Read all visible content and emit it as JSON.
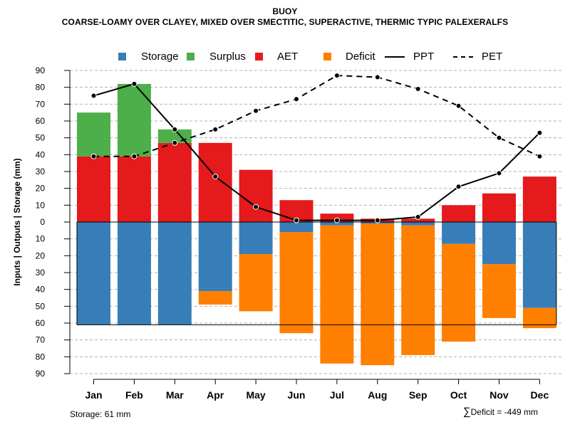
{
  "title": "BUOY",
  "subtitle": "COARSE-LOAMY OVER CLAYEY, MIXED OVER SMECTITIC, SUPERACTIVE, THERMIC TYPIC PALEXERALFS",
  "legend": [
    {
      "label": "Storage",
      "kind": "box",
      "color": "#377eb8"
    },
    {
      "label": "Surplus",
      "kind": "box",
      "color": "#4daf4a"
    },
    {
      "label": "AET",
      "kind": "box",
      "color": "#e41a1c"
    },
    {
      "label": "Deficit",
      "kind": "box",
      "color": "#ff7f00"
    },
    {
      "label": "PPT",
      "kind": "solid",
      "color": "#000000"
    },
    {
      "label": "PET",
      "kind": "dashed",
      "color": "#000000"
    }
  ],
  "footer": {
    "storage_note": "Storage: 61 mm",
    "deficit_symbol": "∑",
    "deficit_note": "Deficit = -449 mm"
  },
  "chart_data": {
    "type": "bar",
    "title": "BUOY",
    "ylabel": "Inputs | Outputs | Storage     (mm)",
    "ylim": [
      -90,
      90
    ],
    "yticks": [
      90,
      80,
      70,
      60,
      50,
      40,
      30,
      20,
      10,
      0,
      -10,
      -20,
      -30,
      -40,
      -50,
      -60,
      -70,
      -80,
      -90
    ],
    "ytick_labels": [
      "90",
      "80",
      "70",
      "60",
      "50",
      "40",
      "30",
      "20",
      "10",
      "0",
      "10",
      "20",
      "30",
      "40",
      "50",
      "60",
      "70",
      "80",
      "90"
    ],
    "categories": [
      "Jan",
      "Feb",
      "Mar",
      "Apr",
      "May",
      "Jun",
      "Jul",
      "Aug",
      "Sep",
      "Oct",
      "Nov",
      "Dec"
    ],
    "above_zero": {
      "AET": [
        39,
        39,
        47,
        47,
        31,
        13,
        5,
        2,
        2,
        10,
        17,
        27
      ],
      "Surplus": [
        26,
        43,
        8,
        0,
        0,
        0,
        0,
        0,
        0,
        0,
        0,
        0
      ]
    },
    "below_zero": {
      "Storage": [
        61,
        61,
        61,
        41,
        19,
        6,
        2,
        1,
        2,
        13,
        25,
        51
      ],
      "Deficit": [
        0,
        0,
        0,
        8,
        34,
        60,
        82,
        84,
        77,
        58,
        32,
        12
      ]
    },
    "PPT": [
      75,
      82,
      55,
      27,
      9,
      1,
      1,
      1,
      3,
      21,
      29,
      53
    ],
    "PET": [
      39,
      39,
      47,
      55,
      66,
      73,
      87,
      86,
      79,
      69,
      50,
      39
    ],
    "storage_capacity": 61,
    "colors": {
      "Storage": "#377eb8",
      "Surplus": "#4daf4a",
      "AET": "#e41a1c",
      "Deficit": "#ff7f00"
    }
  }
}
